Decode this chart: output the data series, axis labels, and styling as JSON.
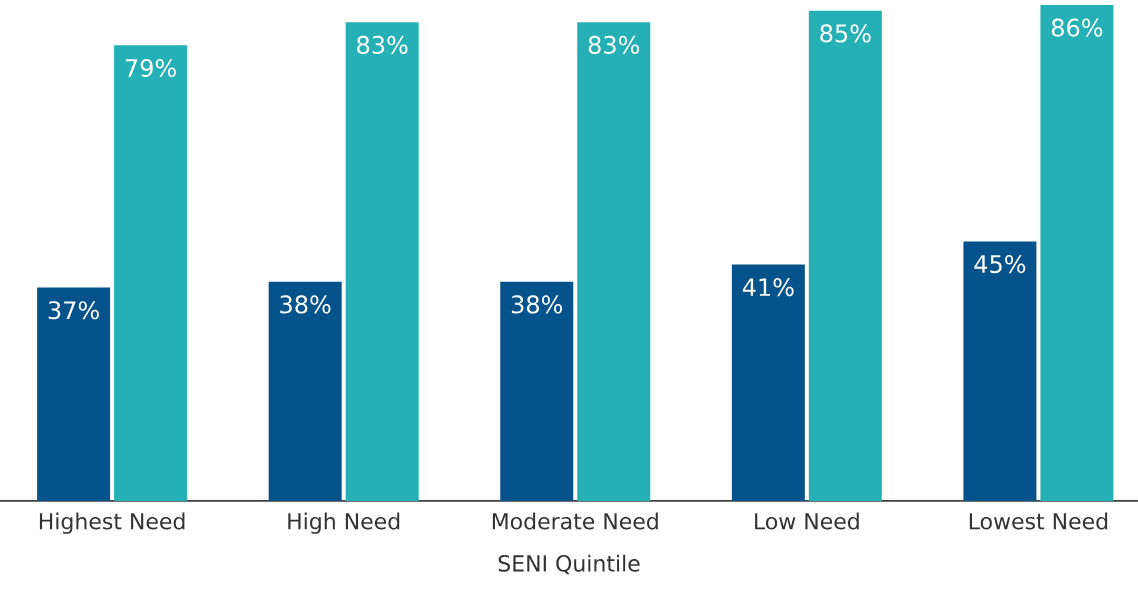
{
  "chart_data": {
    "type": "bar",
    "xlabel": "SENI Quintile",
    "categories": [
      "Highest Need",
      "High Need",
      "Moderate Need",
      "Low Need",
      "Lowest Need"
    ],
    "series": [
      {
        "color": "#05538a",
        "values": [
          37,
          38,
          38,
          41,
          45
        ],
        "value_labels": [
          "37%",
          "38%",
          "38%",
          "41%",
          "45%"
        ]
      },
      {
        "color": "#25b0b6",
        "values": [
          79,
          83,
          83,
          85,
          86
        ],
        "value_labels": [
          "79%",
          "83%",
          "83%",
          "85%",
          "86%"
        ]
      }
    ]
  }
}
